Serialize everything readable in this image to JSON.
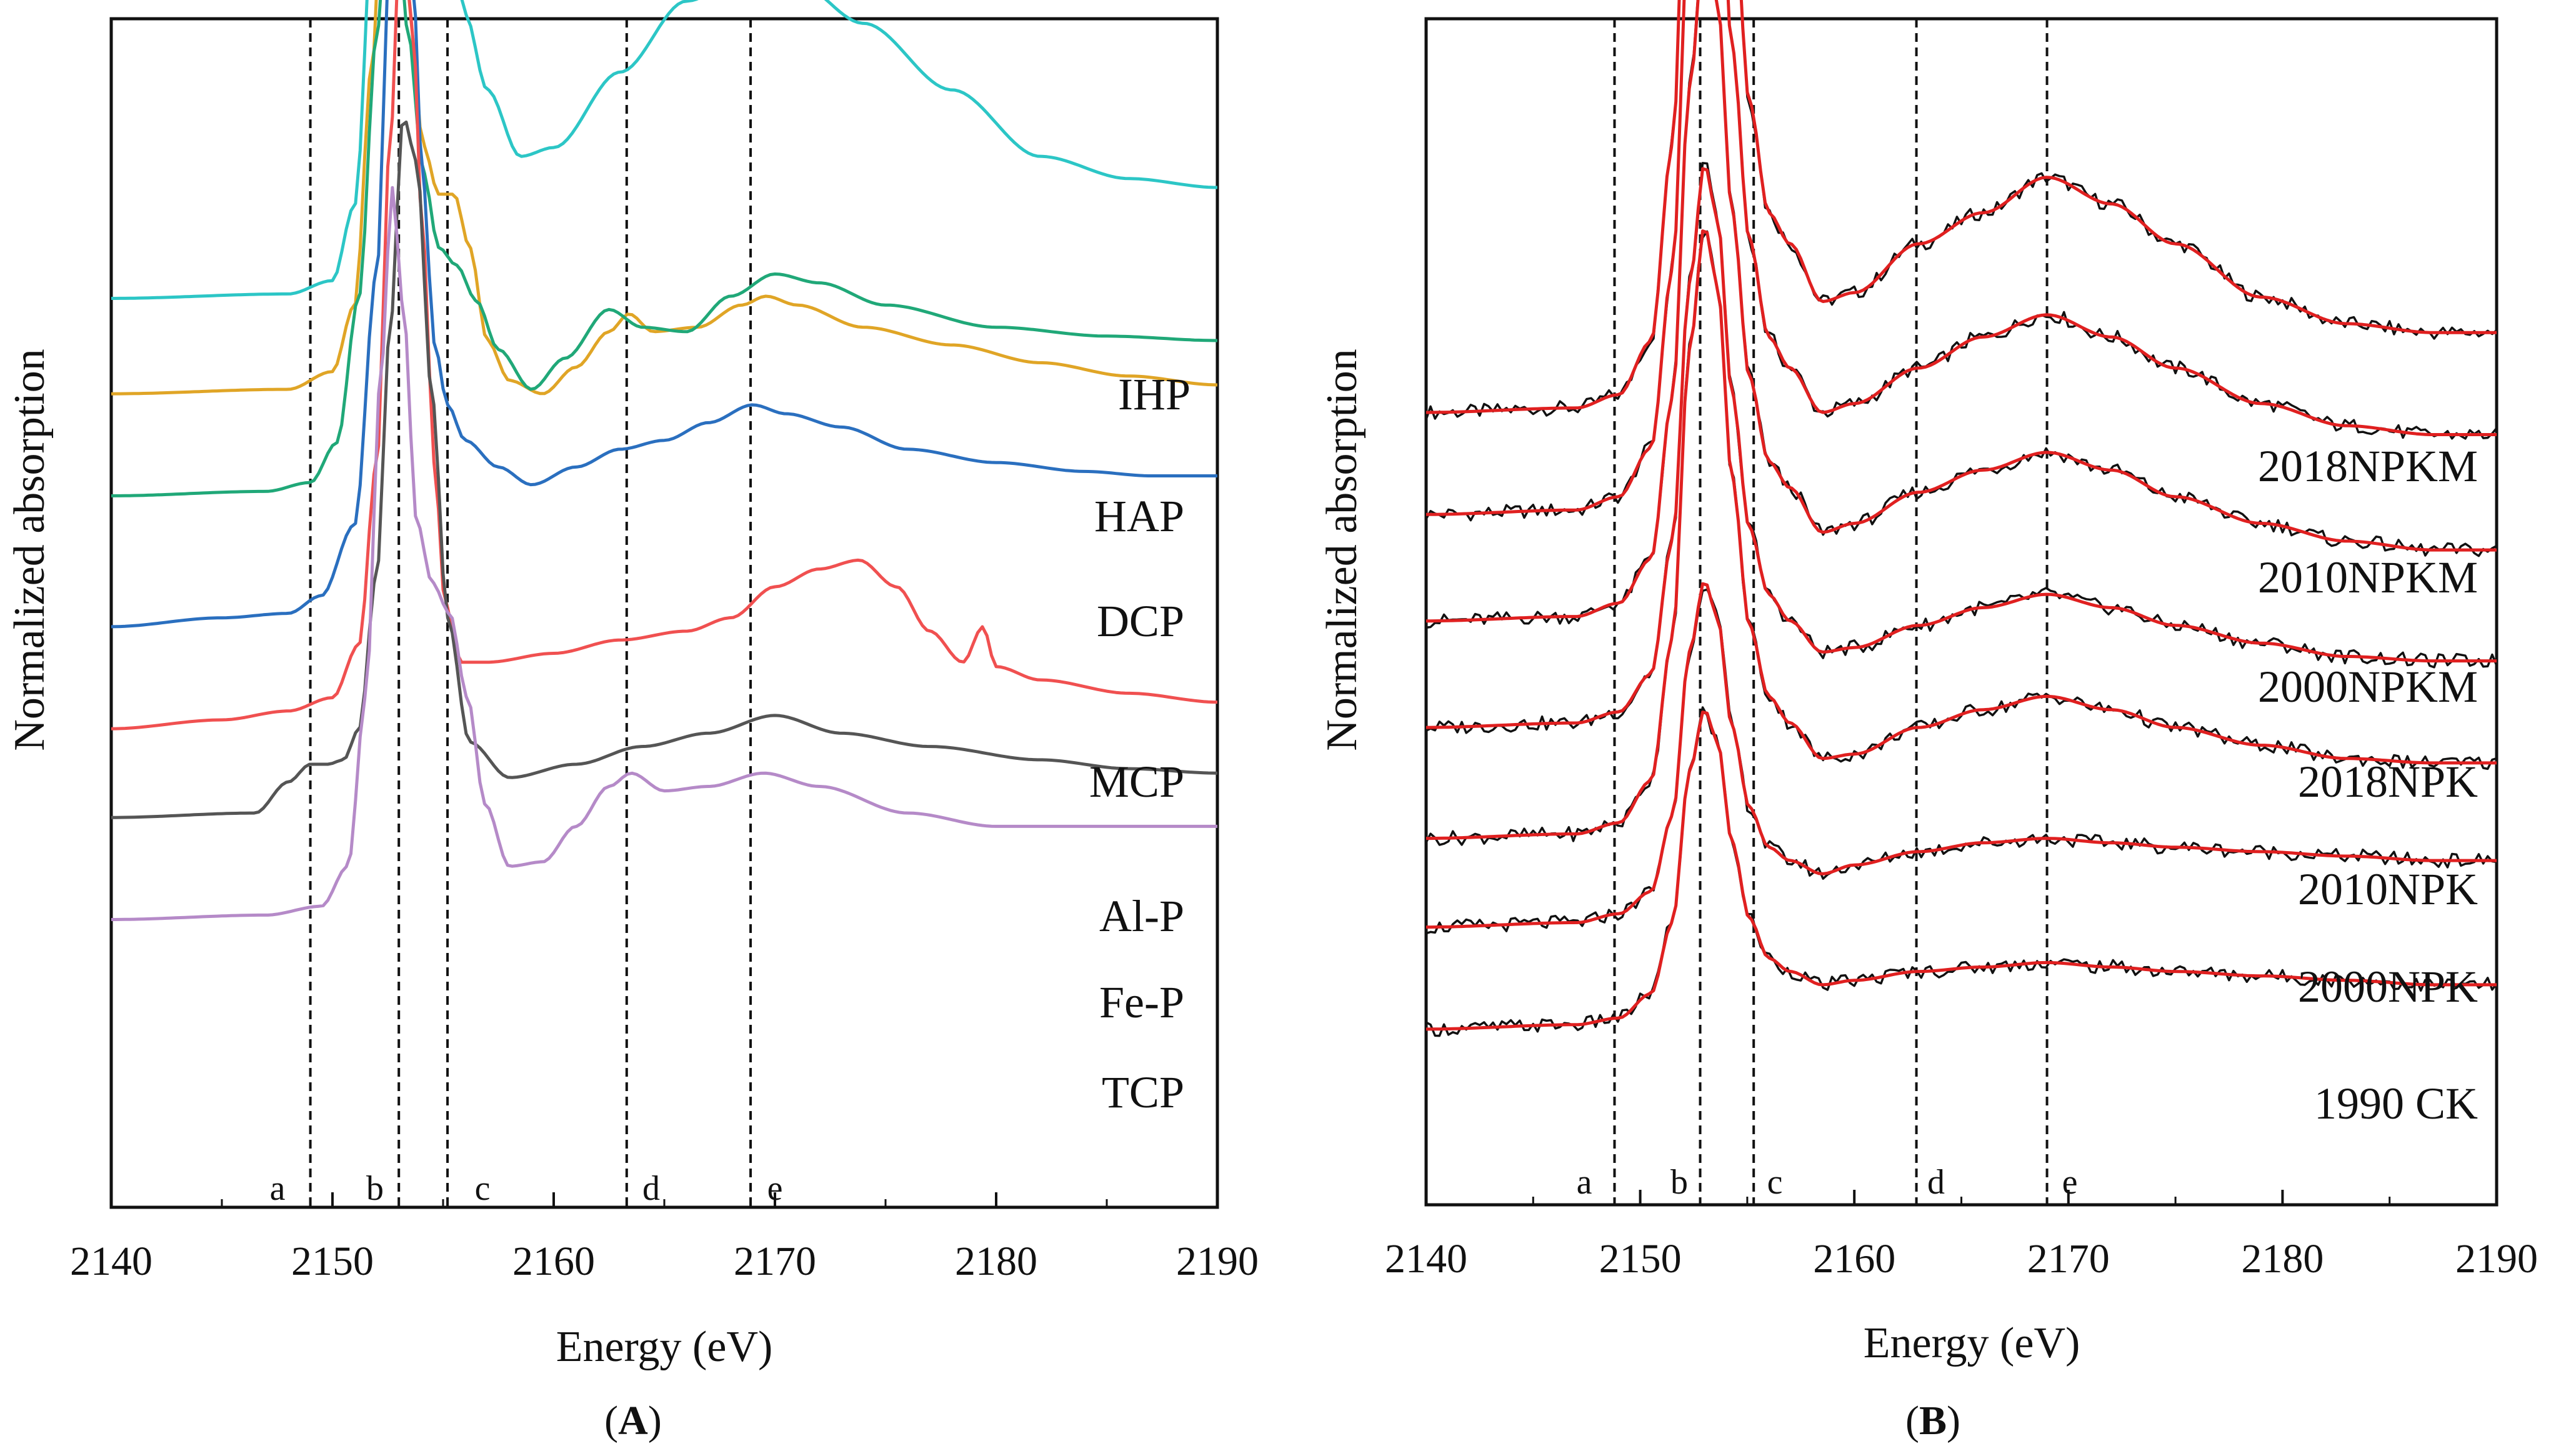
{
  "chart_data": [
    {
      "type": "line",
      "panel": "A",
      "panel_label": "A",
      "xlabel": "Energy (eV)",
      "ylabel": "Normalized absorption",
      "xlim": [
        2140,
        2190
      ],
      "xticks": [
        2140,
        2150,
        2160,
        2170,
        2180,
        2190
      ],
      "reference_lines": [
        {
          "label": "a",
          "energy": 2149.0
        },
        {
          "label": "b",
          "energy": 2153.0
        },
        {
          "label": "c",
          "energy": 2155.2
        },
        {
          "label": "d",
          "energy": 2163.3
        },
        {
          "label": "e",
          "energy": 2168.9
        }
      ],
      "series": [
        {
          "name": "IHP",
          "color": "#2cc6c6",
          "offset": 0.225,
          "style": "single",
          "energy": [
            2140,
            2148,
            2150,
            2151,
            2152,
            2152.5,
            2153.0,
            2153.6,
            2154.3,
            2155.0,
            2156.0,
            2157.0,
            2158.5,
            2160,
            2163,
            2166,
            2168.5,
            2171,
            2174,
            2178,
            2182,
            2186,
            2190
          ],
          "y": [
            0,
            0.001,
            0.004,
            0.021,
            0.1,
            0.195,
            0.254,
            0.245,
            0.185,
            0.113,
            0.064,
            0.047,
            0.032,
            0.034,
            0.051,
            0.067,
            0.072,
            0.071,
            0.062,
            0.047,
            0.032,
            0.027,
            0.025
          ]
        },
        {
          "name": "HAP",
          "color": "#e0a526",
          "offset": 0.2035,
          "style": "single",
          "energy": [
            2140,
            2148,
            2150,
            2151,
            2151.8,
            2152.4,
            2153.0,
            2153.5,
            2154.1,
            2154.8,
            2155.5,
            2156.2,
            2157.0,
            2158.0,
            2159.5,
            2161,
            2162.5,
            2163.4,
            2164.5,
            2166.5,
            2168.5,
            2169.6,
            2171,
            2174,
            2178,
            2182,
            2186,
            2190
          ],
          "y": [
            0,
            0.001,
            0.005,
            0.02,
            0.075,
            0.131,
            0.128,
            0.085,
            0.056,
            0.045,
            0.045,
            0.033,
            0.012,
            0.003,
            0.0,
            0.006,
            0.014,
            0.018,
            0.014,
            0.015,
            0.02,
            0.022,
            0.02,
            0.015,
            0.011,
            0.007,
            0.004,
            0.002
          ]
        },
        {
          "name": "DCP",
          "color": "#20a878",
          "offset": 0.1805,
          "style": "single",
          "energy": [
            2140,
            2147,
            2149,
            2150.2,
            2151.2,
            2152.0,
            2152.5,
            2152.9,
            2153.4,
            2154.1,
            2154.8,
            2155.6,
            2156.5,
            2157.5,
            2159.0,
            2160.5,
            2162.5,
            2164,
            2166,
            2168,
            2170,
            2172,
            2175,
            2180,
            2185,
            2190
          ],
          "y": [
            0,
            0.001,
            0.003,
            0.012,
            0.045,
            0.104,
            0.131,
            0.13,
            0.105,
            0.073,
            0.056,
            0.052,
            0.044,
            0.033,
            0.024,
            0.031,
            0.042,
            0.038,
            0.037,
            0.045,
            0.05,
            0.048,
            0.043,
            0.038,
            0.036,
            0.035
          ]
        },
        {
          "name": "MCP",
          "color": "#2a6fbf",
          "offset": 0.151,
          "style": "single",
          "energy": [
            2140,
            2145,
            2148,
            2149.5,
            2151.0,
            2152.0,
            2152.6,
            2153.1,
            2153.6,
            2154.1,
            2154.6,
            2155.2,
            2156.0,
            2157.5,
            2159,
            2161,
            2163,
            2165,
            2167,
            2169,
            2170.5,
            2173,
            2176,
            2180,
            2184,
            2187,
            2190
          ],
          "y": [
            0,
            0.002,
            0.003,
            0.007,
            0.023,
            0.08,
            0.152,
            0.17,
            0.148,
            0.1,
            0.064,
            0.05,
            0.042,
            0.036,
            0.032,
            0.036,
            0.04,
            0.042,
            0.046,
            0.05,
            0.048,
            0.045,
            0.04,
            0.037,
            0.035,
            0.034,
            0.034
          ]
        },
        {
          "name": "Al-P",
          "color": "#f05050",
          "offset": 0.128,
          "style": "single",
          "energy": [
            2140,
            2145,
            2148,
            2150,
            2151.2,
            2152.0,
            2152.6,
            2153.1,
            2153.6,
            2154.1,
            2154.6,
            2155.1,
            2155.8,
            2157,
            2160,
            2163,
            2166,
            2168,
            2170,
            2172,
            2173.8,
            2175.5,
            2177,
            2178.5,
            2179.4,
            2180.0,
            2182,
            2186,
            2190
          ],
          "y": [
            0,
            0.002,
            0.004,
            0.007,
            0.019,
            0.06,
            0.132,
            0.181,
            0.16,
            0.11,
            0.06,
            0.028,
            0.015,
            0.015,
            0.017,
            0.02,
            0.022,
            0.025,
            0.032,
            0.036,
            0.038,
            0.032,
            0.022,
            0.015,
            0.023,
            0.014,
            0.011,
            0.008,
            0.006
          ]
        },
        {
          "name": "Fe-P",
          "color": "#555555",
          "offset": 0.108,
          "style": "single",
          "energy": [
            2140,
            2146.5,
            2148.0,
            2149.0,
            2149.8,
            2150.5,
            2151.2,
            2152.0,
            2152.6,
            2153.2,
            2153.8,
            2154.5,
            2155.2,
            2156.2,
            2158,
            2161,
            2164,
            2167,
            2170,
            2173,
            2177,
            2182,
            2186,
            2190
          ],
          "y": [
            0,
            0.001,
            0.008,
            0.012,
            0.012,
            0.013,
            0.02,
            0.055,
            0.11,
            0.158,
            0.148,
            0.095,
            0.045,
            0.017,
            0.009,
            0.012,
            0.016,
            0.019,
            0.023,
            0.019,
            0.016,
            0.013,
            0.011,
            0.01
          ]
        },
        {
          "name": "TCP",
          "color": "#b58ac8",
          "offset": 0.085,
          "style": "single",
          "energy": [
            2140,
            2147,
            2149.5,
            2150.7,
            2151.5,
            2152.2,
            2152.7,
            2153.2,
            2153.8,
            2154.5,
            2155.3,
            2156.1,
            2156.9,
            2158.0,
            2159.5,
            2161,
            2162.5,
            2163.5,
            2165,
            2167,
            2169.5,
            2172,
            2176,
            2180,
            2185,
            2190
          ],
          "y": [
            0,
            0.001,
            0.003,
            0.012,
            0.05,
            0.124,
            0.165,
            0.138,
            0.09,
            0.076,
            0.069,
            0.05,
            0.026,
            0.012,
            0.013,
            0.021,
            0.03,
            0.033,
            0.029,
            0.03,
            0.033,
            0.03,
            0.024,
            0.021,
            0.021,
            0.021
          ]
        }
      ],
      "series_labels": [
        "IHP",
        "HAP",
        "DCP",
        "MCP",
        "Al-P",
        "Fe-P",
        "TCP"
      ]
    },
    {
      "type": "line",
      "panel": "B",
      "panel_label": "B",
      "xlabel": "Energy (eV)",
      "ylabel": "Normalized absorption",
      "xlim": [
        2140,
        2190
      ],
      "xticks": [
        2140,
        2150,
        2160,
        2170,
        2180,
        2190
      ],
      "reference_lines": [
        {
          "label": "a",
          "energy": 2148.8
        },
        {
          "label": "b",
          "energy": 2152.8
        },
        {
          "label": "c",
          "energy": 2155.3
        },
        {
          "label": "d",
          "energy": 2162.9
        },
        {
          "label": "e",
          "energy": 2169.0
        }
      ],
      "series_style": "measured spectrum (black) with fitted curve (red)",
      "series": [
        {
          "name": "2018NPKM",
          "color_measured": "#111111",
          "color_fit": "#e02020",
          "offset": 0.2,
          "energy": [
            2140,
            2147,
            2149,
            2150.5,
            2151.5,
            2152.3,
            2153.0,
            2153.6,
            2154.3,
            2155.1,
            2156,
            2157,
            2158.5,
            2160,
            2163,
            2166,
            2169,
            2172,
            2175,
            2179,
            2183,
            2187,
            2190
          ],
          "y": [
            0,
            0.001,
            0.004,
            0.016,
            0.06,
            0.15,
            0.205,
            0.185,
            0.12,
            0.07,
            0.045,
            0.038,
            0.025,
            0.027,
            0.038,
            0.045,
            0.053,
            0.047,
            0.038,
            0.026,
            0.02,
            0.018,
            0.018
          ]
        },
        {
          "name": "2010NPKM",
          "color_measured": "#111111",
          "color_fit": "#e02020",
          "offset": 0.177,
          "energy": [
            2140,
            2147,
            2149,
            2150.5,
            2151.5,
            2152.3,
            2153.0,
            2153.6,
            2154.3,
            2155.1,
            2156,
            2157,
            2158.5,
            2160,
            2163,
            2166,
            2169,
            2172,
            2175,
            2179,
            2183,
            2187,
            2190
          ],
          "y": [
            0,
            0.001,
            0.004,
            0.015,
            0.055,
            0.135,
            0.175,
            0.16,
            0.105,
            0.062,
            0.04,
            0.033,
            0.023,
            0.025,
            0.033,
            0.04,
            0.045,
            0.04,
            0.033,
            0.025,
            0.02,
            0.018,
            0.018
          ]
        },
        {
          "name": "2000NPKM",
          "color_measured": "#111111",
          "color_fit": "#e02020",
          "offset": 0.153,
          "energy": [
            2140,
            2147,
            2149,
            2150.5,
            2151.5,
            2152.3,
            2153.0,
            2153.6,
            2154.3,
            2155.1,
            2156,
            2157,
            2158.5,
            2160,
            2163,
            2166,
            2169,
            2172,
            2175,
            2179,
            2183,
            2187,
            2190
          ],
          "y": [
            0,
            0.001,
            0.004,
            0.014,
            0.05,
            0.12,
            0.153,
            0.14,
            0.092,
            0.055,
            0.036,
            0.03,
            0.02,
            0.022,
            0.029,
            0.034,
            0.038,
            0.034,
            0.028,
            0.022,
            0.018,
            0.016,
            0.016
          ]
        },
        {
          "name": "2018NPK",
          "color_measured": "#111111",
          "color_fit": "#e02020",
          "offset": 0.129,
          "energy": [
            2140,
            2147,
            2149,
            2150.5,
            2151.5,
            2152.3,
            2153.0,
            2153.6,
            2154.3,
            2155.1,
            2156,
            2157,
            2158.5,
            2160,
            2163,
            2166,
            2169,
            2172,
            2175,
            2179,
            2183,
            2187,
            2190
          ],
          "y": [
            0,
            0.001,
            0.0035,
            0.012,
            0.042,
            0.1,
            0.127,
            0.115,
            0.075,
            0.045,
            0.03,
            0.024,
            0.017,
            0.018,
            0.023,
            0.027,
            0.03,
            0.027,
            0.023,
            0.019,
            0.016,
            0.015,
            0.015
          ]
        },
        {
          "name": "2010NPK",
          "color_measured": "#111111",
          "color_fit": "#e02020",
          "offset": 0.104,
          "energy": [
            2140,
            2147,
            2149,
            2150.5,
            2151.5,
            2152.3,
            2153.0,
            2153.6,
            2154.3,
            2155.1,
            2156,
            2157,
            2158.5,
            2160,
            2163,
            2166,
            2169,
            2172,
            2175,
            2179,
            2183,
            2187,
            2190
          ],
          "y": [
            0,
            0.001,
            0.0035,
            0.013,
            0.045,
            0.11,
            0.138,
            0.125,
            0.081,
            0.048,
            0.032,
            0.026,
            0.018,
            0.019,
            0.025,
            0.029,
            0.032,
            0.029,
            0.025,
            0.021,
            0.018,
            0.017,
            0.017
          ]
        },
        {
          "name": "2000NPK",
          "color_measured": "#111111",
          "color_fit": "#e02020",
          "offset": 0.084,
          "energy": [
            2140,
            2147,
            2149,
            2150.5,
            2151.5,
            2152.3,
            2153.0,
            2153.6,
            2154.3,
            2155.1,
            2156,
            2157,
            2158.5,
            2160,
            2163,
            2166,
            2169,
            2172,
            2175,
            2179,
            2183,
            2187,
            2190
          ],
          "y": [
            0,
            0.001,
            0.003,
            0.008,
            0.025,
            0.062,
            0.078,
            0.07,
            0.045,
            0.027,
            0.018,
            0.015,
            0.012,
            0.014,
            0.017,
            0.019,
            0.02,
            0.019,
            0.018,
            0.017,
            0.016,
            0.015,
            0.015
          ]
        },
        {
          "name": "1990 CK",
          "color_measured": "#111111",
          "color_fit": "#e02020",
          "offset": 0.061,
          "energy": [
            2140,
            2147,
            2149,
            2150.5,
            2151.5,
            2152.3,
            2153.0,
            2153.6,
            2154.3,
            2155.1,
            2156,
            2157,
            2158.5,
            2160,
            2163,
            2166,
            2169,
            2172,
            2175,
            2179,
            2183,
            2187,
            2190
          ],
          "y": [
            0,
            0.001,
            0.0025,
            0.008,
            0.024,
            0.058,
            0.072,
            0.065,
            0.042,
            0.025,
            0.016,
            0.013,
            0.01,
            0.011,
            0.013,
            0.014,
            0.015,
            0.014,
            0.013,
            0.012,
            0.011,
            0.01,
            0.01
          ]
        }
      ],
      "series_labels": [
        "2018NPKM",
        "2010NPKM",
        "2000NPKM",
        "2018NPK",
        "2010NPK",
        "2000NPK",
        "1990 CK"
      ]
    }
  ]
}
